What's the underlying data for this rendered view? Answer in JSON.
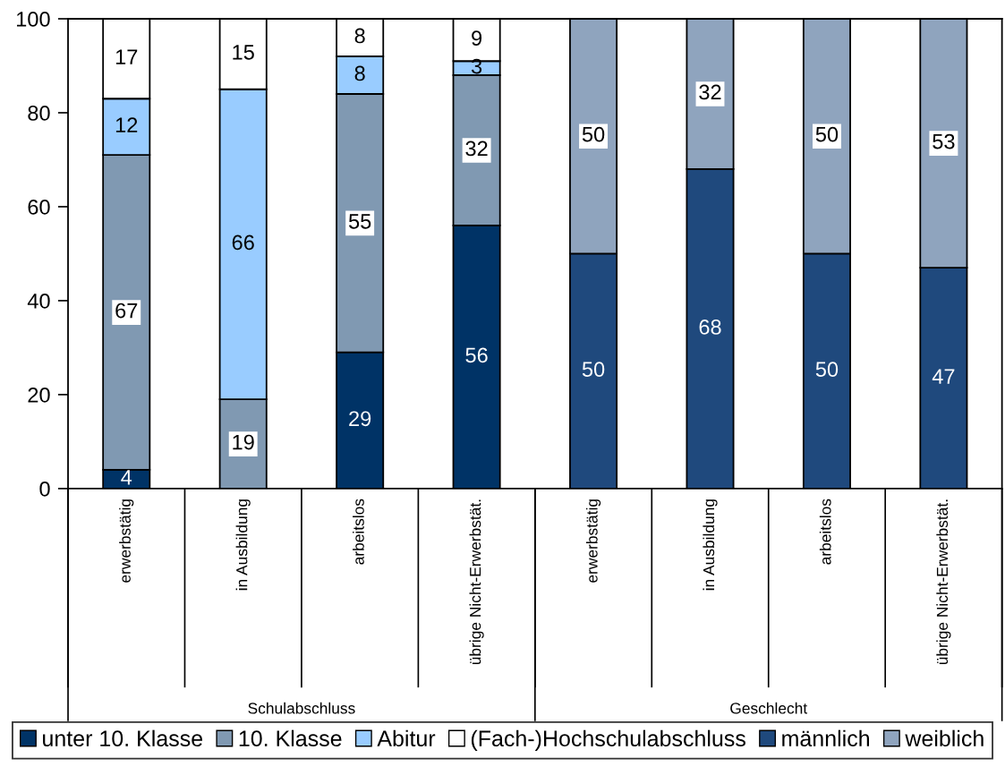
{
  "chart_data": {
    "type": "bar",
    "stacked": true,
    "categories": [
      "erwerbstätig",
      "in Ausbildung",
      "arbeitslos",
      "übrige Nicht-Erwerbstät.",
      "erwerbstätig",
      "in Ausbildung",
      "arbeitslos",
      "übrige Nicht-Erwerbstät."
    ],
    "annotations": [
      "Schulabschluss",
      "Geschlecht"
    ],
    "series": [
      {
        "name": "unter 10. Klasse",
        "color": "#003366",
        "values": [
          4,
          null,
          29,
          56,
          null,
          null,
          null,
          null
        ]
      },
      {
        "name": "10. Klasse",
        "color": "#8099b2",
        "values": [
          67,
          19,
          55,
          32,
          null,
          null,
          null,
          null
        ]
      },
      {
        "name": "Abitur",
        "color": "#99ccff",
        "values": [
          12,
          66,
          8,
          3,
          null,
          null,
          null,
          null
        ]
      },
      {
        "name": "(Fach-)Hochschulabschluss",
        "color": "#ffffff",
        "values": [
          17,
          15,
          8,
          9,
          null,
          null,
          null,
          null
        ]
      },
      {
        "name": "männlich",
        "color": "#1f497d",
        "values": [
          null,
          null,
          null,
          null,
          50,
          68,
          50,
          47
        ]
      },
      {
        "name": "weiblich",
        "color": "#8fa4be",
        "values": [
          null,
          null,
          null,
          null,
          50,
          32,
          50,
          53
        ]
      }
    ],
    "ylim": [
      0,
      100
    ],
    "yticks": [
      0,
      20,
      40,
      60,
      80,
      100
    ],
    "data_labels": true,
    "legend": "bottom",
    "grid": false
  }
}
